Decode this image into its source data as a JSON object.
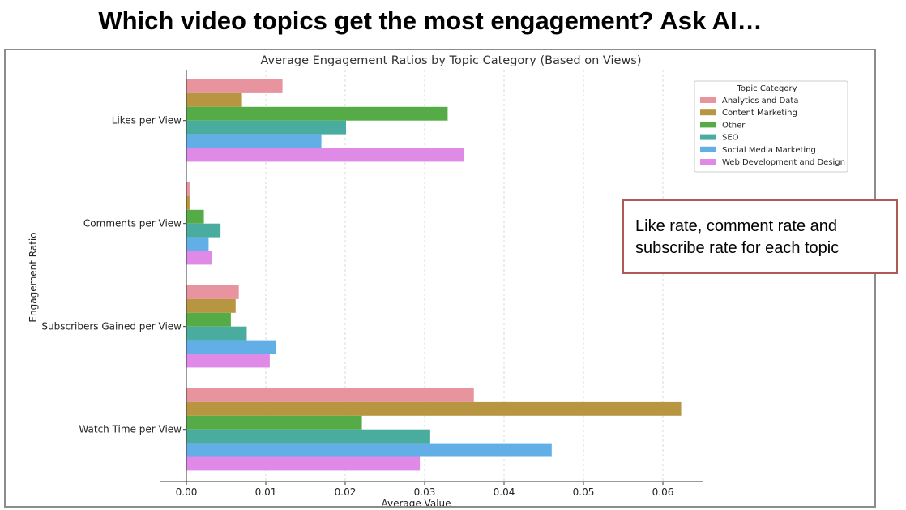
{
  "slide": {
    "title": "Which video topics get the most engagement? Ask AI…",
    "callout": "Like rate, comment rate and subscribe rate for each topic"
  },
  "chart_data": {
    "type": "bar",
    "orientation": "horizontal",
    "title": "Average Engagement Ratios by Topic Category (Based on Views)",
    "xlabel": "Average Value",
    "ylabel": "Engagement Ratio",
    "xlim": [
      0,
      0.065
    ],
    "xticks": [
      "0.00",
      "0.01",
      "0.02",
      "0.03",
      "0.04",
      "0.05",
      "0.06"
    ],
    "grid": "vertical dashed",
    "legend": {
      "title": "Topic Category",
      "placement": "top-right"
    },
    "categories": [
      "Likes per View",
      "Comments per View",
      "Subscribers Gained per View",
      "Watch Time per View"
    ],
    "series": [
      {
        "name": "Analytics and Data",
        "color": "#e8949f",
        "values": [
          0.0121,
          0.0004,
          0.0066,
          0.0362
        ]
      },
      {
        "name": "Content Marketing",
        "color": "#b89540",
        "values": [
          0.007,
          0.0004,
          0.0062,
          0.0623
        ]
      },
      {
        "name": "Other",
        "color": "#55ac46",
        "values": [
          0.0329,
          0.0022,
          0.0056,
          0.0221
        ]
      },
      {
        "name": "SEO",
        "color": "#4aab9f",
        "values": [
          0.0201,
          0.0043,
          0.0076,
          0.0307
        ]
      },
      {
        "name": "Social Media Marketing",
        "color": "#62aee6",
        "values": [
          0.017,
          0.0028,
          0.0113,
          0.046
        ]
      },
      {
        "name": "Web Development and Design",
        "color": "#e08ae8",
        "values": [
          0.0349,
          0.0032,
          0.0105,
          0.0294
        ]
      }
    ]
  }
}
